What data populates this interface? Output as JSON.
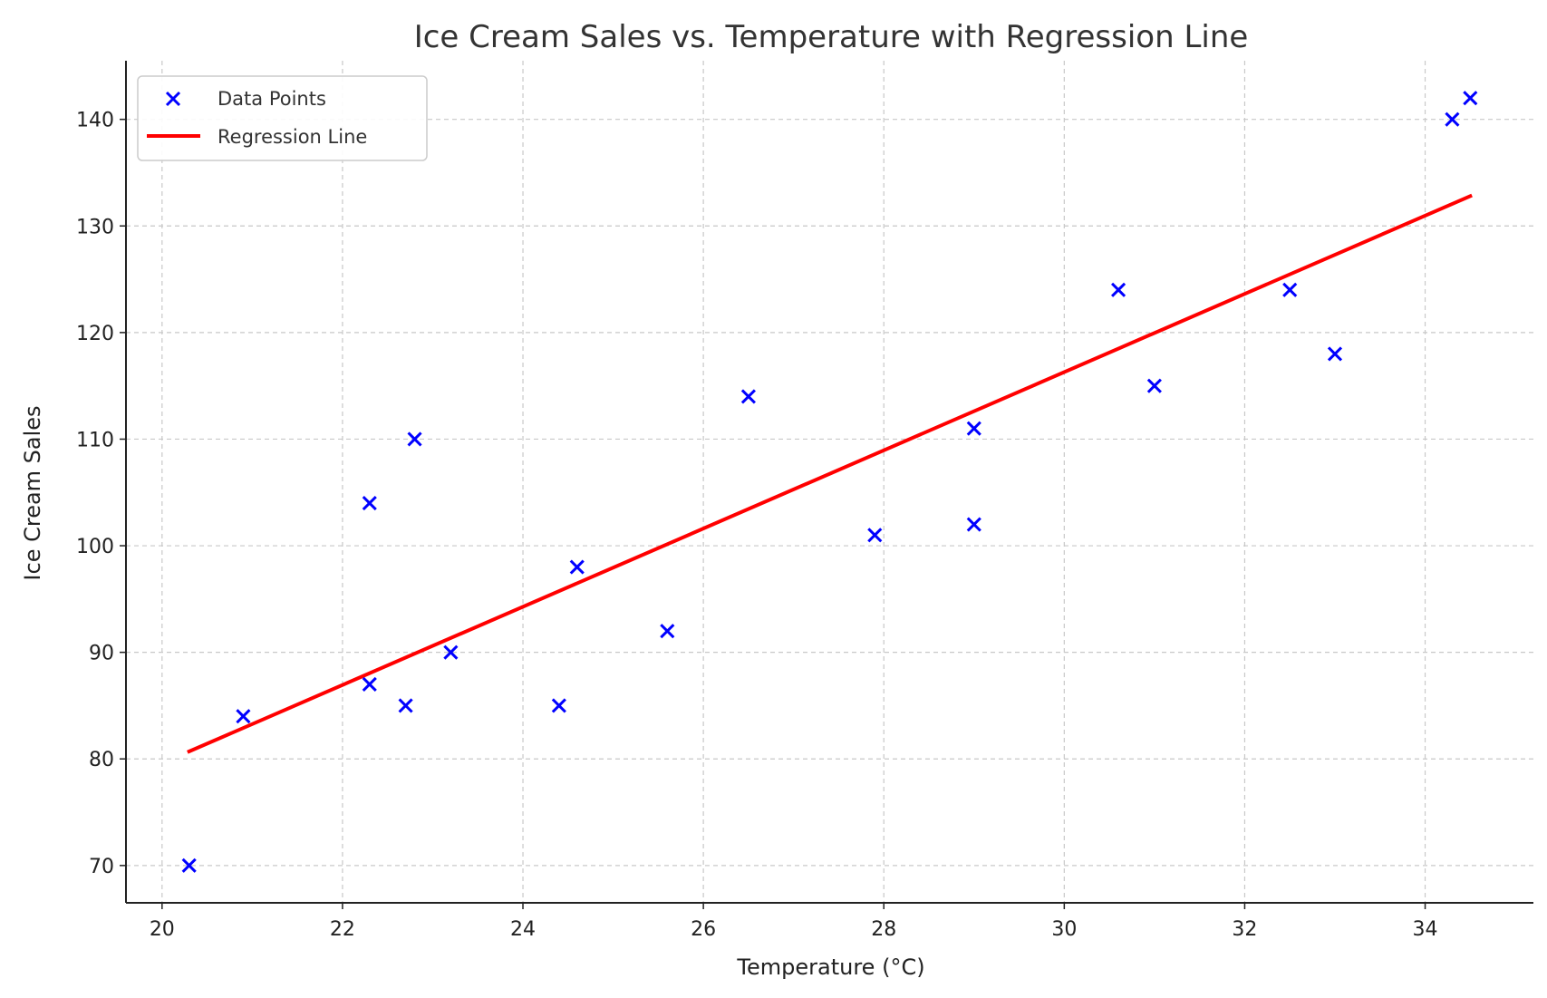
{
  "chart_data": {
    "type": "scatter",
    "title": "Ice Cream Sales vs. Temperature with Regression Line",
    "xlabel": "Temperature (°C)",
    "ylabel": "Ice Cream Sales",
    "xlim": [
      19.6,
      35.2
    ],
    "ylim": [
      66.5,
      145.5
    ],
    "x_ticks": [
      20,
      22,
      24,
      26,
      28,
      30,
      32,
      34
    ],
    "y_ticks": [
      70,
      80,
      90,
      100,
      110,
      120,
      130,
      140
    ],
    "grid": true,
    "legend_position": "top-left",
    "series": [
      {
        "name": "Data Points",
        "type": "scatter",
        "marker": "x",
        "color": "#0000ff",
        "x": [
          20.3,
          20.9,
          22.3,
          22.3,
          22.7,
          22.8,
          23.2,
          24.4,
          24.6,
          25.6,
          26.5,
          27.9,
          29.0,
          29.0,
          30.6,
          31.0,
          32.5,
          33.0,
          34.3,
          34.5
        ],
        "y": [
          70,
          84,
          87,
          104,
          85,
          110,
          90,
          85,
          98,
          92,
          114,
          101,
          111,
          102,
          124,
          115,
          124,
          118,
          140,
          142
        ]
      },
      {
        "name": "Regression Line",
        "type": "line",
        "color": "#ff0000",
        "x": [
          20.3,
          34.5
        ],
        "y": [
          80.7,
          132.8
        ]
      }
    ]
  }
}
